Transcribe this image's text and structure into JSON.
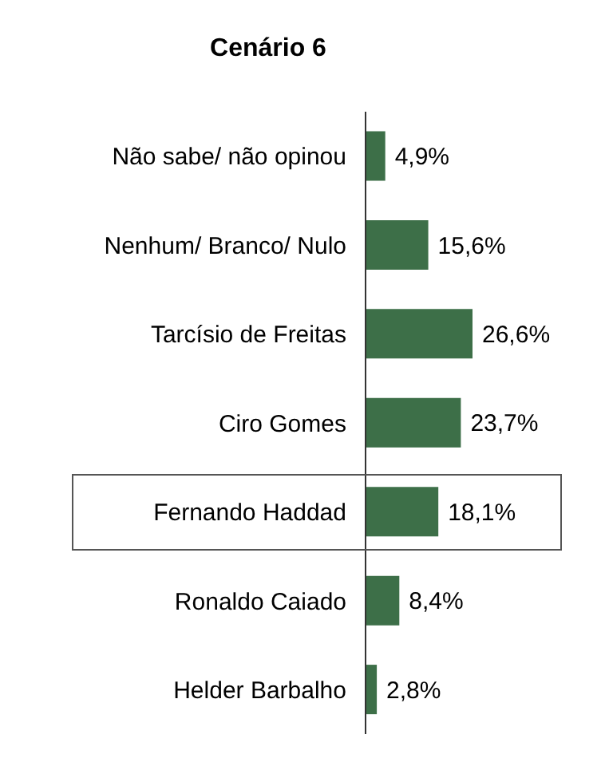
{
  "chart_data": {
    "type": "bar",
    "orientation": "horizontal",
    "title": "Cenário 6",
    "categories": [
      "Não sabe/ não opinou",
      "Nenhum/ Branco/ Nulo",
      "Tarcísio de Freitas",
      "Ciro Gomes",
      "Fernando Haddad",
      "Ronaldo Caiado",
      "Helder Barbalho"
    ],
    "values": [
      4.9,
      15.6,
      26.6,
      23.7,
      18.1,
      8.4,
      2.8
    ],
    "value_labels": [
      "4,9%",
      "15,6%",
      "26,6%",
      "23,7%",
      "18,1%",
      "8,4%",
      "2,8%"
    ],
    "color": "#3d6f48"
  }
}
